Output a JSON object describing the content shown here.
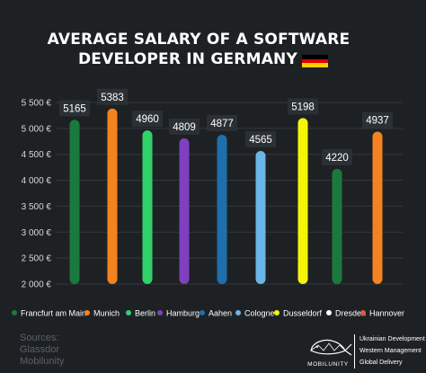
{
  "title_line1": "AVERAGE SALARY OF A SOFTWARE",
  "title_line2": "DEVELOPER IN GERMANY",
  "sources": [
    "Sources:",
    "Glassdor",
    "Mobilunity"
  ],
  "brand": {
    "name": "MOBILUNITY",
    "lines": [
      "Ukrainian Development",
      "Western Management",
      "Global Delivery"
    ]
  },
  "colors": {
    "background": "#1d2124",
    "label_box": "#2b3034",
    "flag": [
      "#000000",
      "#dd0000",
      "#ffce00"
    ]
  },
  "chart_data": {
    "type": "bar",
    "categories": [
      "Francfurt am Main",
      "Munich",
      "Berlin",
      "Hamburg",
      "Aahen",
      "Cologne",
      "Dusseldorf",
      "Dresden",
      "Hannover"
    ],
    "values": [
      5165,
      5383,
      4960,
      4809,
      4877,
      4565,
      5198,
      4220,
      4937
    ],
    "value_labels": [
      "5165",
      "5383",
      "4960",
      "4809",
      "4877",
      "4565",
      "5198",
      "4220",
      "4937"
    ],
    "bar_colors": [
      "#1a7a3d",
      "#f58220",
      "#2fd36a",
      "#7f3fbf",
      "#1f6fad",
      "#6ab4e8",
      "#f4f40a",
      "#1a7a3d",
      "#f58220"
    ],
    "legend_colors": [
      "#1a7a3d",
      "#f58220",
      "#2fd36a",
      "#7f3fbf",
      "#1f6fad",
      "#6ab4e8",
      "#f4f40a",
      "#ffffff",
      "#e05a4a"
    ],
    "y_ticks": [
      2000,
      2500,
      3000,
      3500,
      4000,
      4500,
      5000,
      5500
    ],
    "y_tick_labels": [
      "2 000 €",
      "2 500 €",
      "3 000 €",
      "3 500 €",
      "4 000 €",
      "4 500 €",
      "5 000 €",
      "5 500 €"
    ],
    "ylim": [
      2000,
      5500
    ],
    "grid": true,
    "legend_position": "bottom"
  }
}
